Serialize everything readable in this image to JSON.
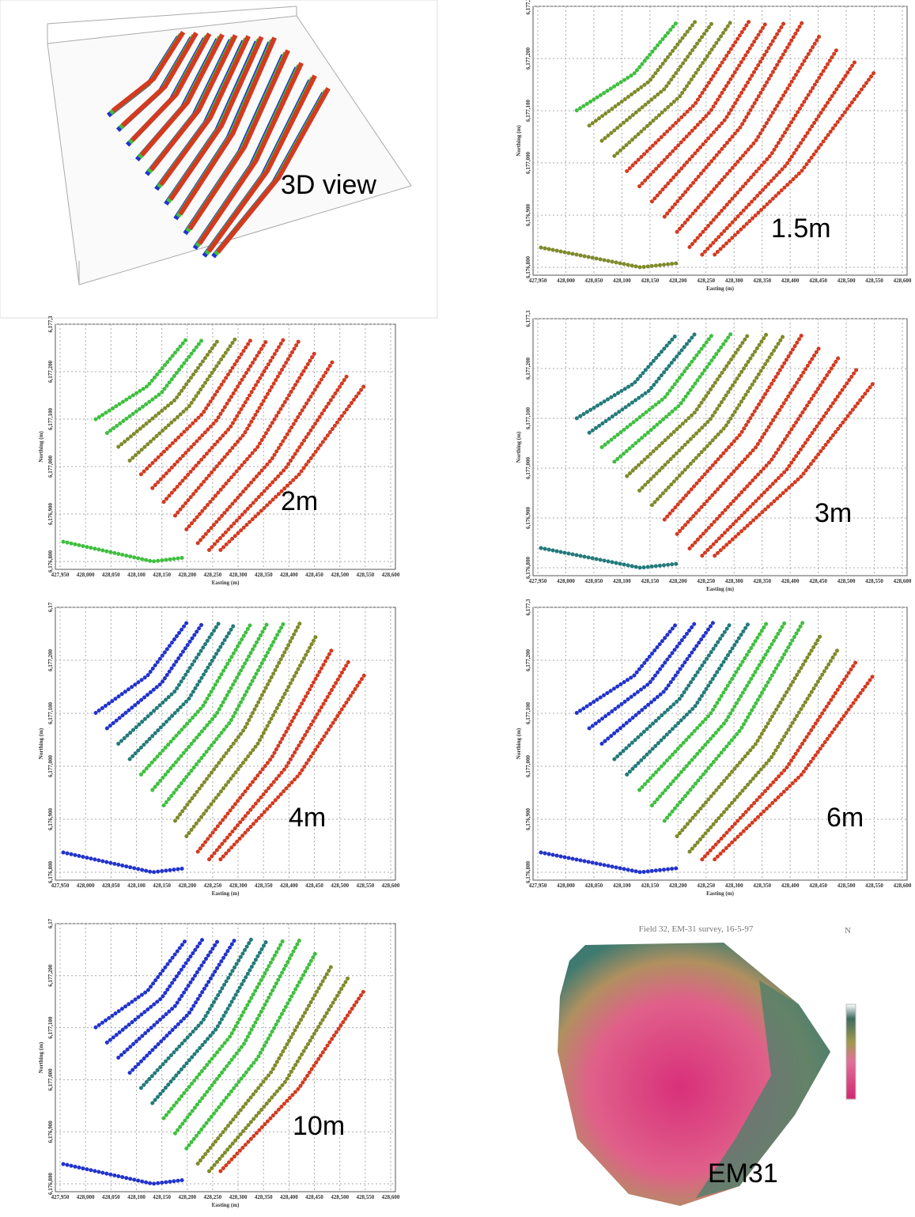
{
  "view3d": {
    "label": "3D view"
  },
  "plots": [
    {
      "label": "1.5m",
      "x_axis": "Easting (m)",
      "y_axis": "Northing (m)",
      "xticks": [
        "427,950",
        "428,000",
        "428,050",
        "428,100",
        "428,150",
        "428,200",
        "428,250",
        "428,300",
        "428,350",
        "428,400",
        "428,450",
        "428,500",
        "428,550",
        "428,600"
      ],
      "yticks": [
        "6,176,800",
        "6,176,900",
        "6,177,000",
        "6,177,100",
        "6,177,200",
        "6,177,3"
      ]
    },
    {
      "label": "2m",
      "x_axis": "Easting (m)",
      "y_axis": "Northing (m)",
      "xticks": [
        "427,950",
        "428,000",
        "428,050",
        "428,100",
        "428,150",
        "428,200",
        "428,250",
        "428,300",
        "428,350",
        "428,400",
        "428,450",
        "428,500",
        "428,550",
        "428,600"
      ],
      "yticks": [
        "6,176,800",
        "6,176,900",
        "6,177,000",
        "6,177,100",
        "6,177,200",
        "6,177,3"
      ]
    },
    {
      "label": "3m",
      "x_axis": "Easting (m)",
      "y_axis": "Northing (m)",
      "xticks": [
        "427,950",
        "428,000",
        "428,050",
        "428,100",
        "428,150",
        "428,200",
        "428,250",
        "428,300",
        "428,350",
        "428,400",
        "428,450",
        "428,500",
        "428,550",
        "428,600"
      ],
      "yticks": [
        "6,176,800",
        "6,176,900",
        "6,177,000",
        "6,177,100",
        "6,177,200",
        "6,177,3"
      ]
    },
    {
      "label": "4m",
      "x_axis": "Easting (m)",
      "y_axis": "Northing (m)",
      "xticks": [
        "427,950",
        "428,000",
        "428,050",
        "428,100",
        "428,150",
        "428,200",
        "428,250",
        "428,300",
        "428,350",
        "428,400",
        "428,450",
        "428,500",
        "428,550",
        "428,600"
      ],
      "yticks": [
        "6,176,800",
        "6,176,900",
        "6,177,000",
        "6,177,100",
        "6,177,200",
        "6,17"
      ]
    },
    {
      "label": "6m",
      "x_axis": "Easting (m)",
      "y_axis": "Northing (m)",
      "xticks": [
        "427,950",
        "428,000",
        "428,050",
        "428,100",
        "428,150",
        "428,200",
        "428,250",
        "428,300",
        "428,350",
        "428,400",
        "428,450",
        "428,500",
        "428,550",
        "428,600"
      ],
      "yticks": [
        "6,176,800",
        "6,176,900",
        "6,177,000",
        "6,177,100",
        "6,177,200",
        "6,177,3"
      ]
    },
    {
      "label": "10m",
      "x_axis": "Easting (m)",
      "y_axis": "Northing (m)",
      "xticks": [
        "427,950",
        "428,000",
        "428,050",
        "428,100",
        "428,150",
        "428,200",
        "428,250",
        "428,300",
        "428,350",
        "428,400",
        "428,450",
        "428,500",
        "428,550",
        "428,600"
      ],
      "yticks": [
        "6,176,800",
        "6,176,900",
        "6,177,000",
        "6,177,100",
        "6,177,200",
        "6,17"
      ]
    }
  ],
  "em31": {
    "title": "Field 32, EM-31 survey, 16-5-97",
    "north": "N",
    "label": "EM31"
  }
}
